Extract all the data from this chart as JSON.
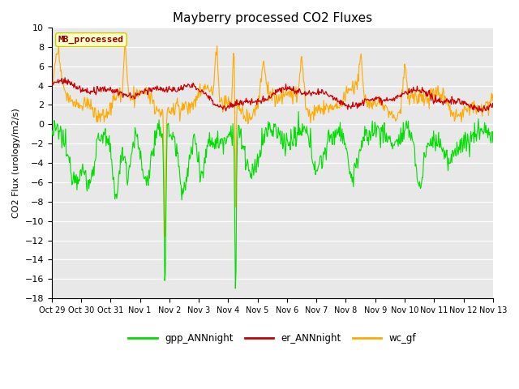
{
  "title": "Mayberry processed CO2 Fluxes",
  "ylabel": "CO2 Flux (urology/m2/s)",
  "ylim": [
    -18,
    10
  ],
  "yticks": [
    -18,
    -16,
    -14,
    -12,
    -10,
    -8,
    -6,
    -4,
    -2,
    0,
    2,
    4,
    6,
    8,
    10
  ],
  "xtick_labels": [
    "Oct 29",
    "Oct 30",
    "Oct 31",
    "Nov 1",
    "Nov 2",
    "Nov 3",
    "Nov 4",
    "Nov 5",
    "Nov 6",
    "Nov 7",
    "Nov 8",
    "Nov 9",
    "Nov 10",
    "Nov 11",
    "Nov 12",
    "Nov 13"
  ],
  "colors": {
    "gpp": "#00dd00",
    "er": "#cc0000",
    "wc": "#ffaa00",
    "plot_bg": "#e8e8e8",
    "fig_bg": "#ffffff",
    "grid": "#ffffff",
    "mb_box_face": "#ffffcc",
    "mb_box_edge": "#cccc00",
    "mb_text": "#880000"
  },
  "mb_label": "MB_processed",
  "legend_labels": [
    "gpp_ANNnight",
    "er_ANNnight",
    "wc_gf"
  ],
  "n_points": 700,
  "seed": 12345
}
